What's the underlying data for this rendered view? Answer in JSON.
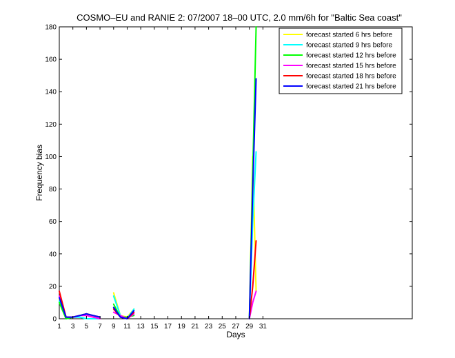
{
  "chart_data": {
    "type": "line",
    "title": "COSMO–EU and RANIE 2: 07/2007 18–00 UTC, 2.0 mm/6h for \"Baltic Sea coast\"",
    "xlabel": "Days",
    "ylabel": "Frequency bias",
    "xlim": [
      1,
      53
    ],
    "ylim": [
      0,
      180
    ],
    "xticks": [
      1,
      3,
      5,
      7,
      9,
      11,
      13,
      15,
      17,
      19,
      21,
      23,
      25,
      27,
      29,
      31
    ],
    "yticks": [
      0,
      20,
      40,
      60,
      80,
      100,
      120,
      140,
      160,
      180
    ],
    "grid": false,
    "legend_position": "top-right",
    "series": [
      {
        "name": "forecast started 6 hrs before",
        "color": "#ffff00",
        "segments": [
          [
            [
              1,
              12
            ],
            [
              2,
              1
            ],
            [
              3,
              1
            ],
            [
              4,
              2
            ],
            [
              5,
              3
            ],
            [
              6,
              1
            ],
            [
              7,
              0
            ]
          ],
          [
            [
              9,
              16
            ],
            [
              10,
              2
            ],
            [
              11,
              1
            ],
            [
              12,
              6
            ]
          ],
          [
            [
              29,
              0
            ],
            [
              29.5,
              100
            ],
            [
              30,
              17
            ]
          ]
        ]
      },
      {
        "name": "forecast started 9 hrs before",
        "color": "#00ffff",
        "segments": [
          [
            [
              1,
              11
            ],
            [
              2,
              0
            ],
            [
              3,
              1
            ],
            [
              4,
              1
            ],
            [
              5,
              0
            ],
            [
              6,
              0
            ],
            [
              7,
              0
            ]
          ],
          [
            [
              9,
              14
            ],
            [
              10,
              2
            ],
            [
              11,
              0
            ],
            [
              12,
              6
            ]
          ],
          [
            [
              29,
              0
            ],
            [
              29.5,
              60
            ],
            [
              30,
              103
            ]
          ]
        ]
      },
      {
        "name": "forecast started 12 hrs before",
        "color": "#00ff00",
        "segments": [
          [
            [
              1,
              10
            ],
            [
              2,
              0
            ],
            [
              3,
              1
            ],
            [
              4,
              2
            ],
            [
              5,
              3
            ],
            [
              6,
              2
            ],
            [
              7,
              1
            ]
          ],
          [
            [
              9,
              9
            ],
            [
              10,
              1
            ],
            [
              11,
              1
            ],
            [
              12,
              2
            ]
          ],
          [
            [
              29,
              0
            ],
            [
              30,
              180
            ]
          ]
        ]
      },
      {
        "name": "forecast started 15 hrs before",
        "color": "#ff00ff",
        "segments": [
          [
            [
              1,
              14
            ],
            [
              2,
              1
            ],
            [
              3,
              1
            ],
            [
              4,
              2
            ],
            [
              5,
              2
            ],
            [
              6,
              1
            ],
            [
              7,
              0
            ]
          ],
          [
            [
              9,
              4
            ],
            [
              10,
              2
            ],
            [
              11,
              0
            ],
            [
              12,
              3
            ]
          ],
          [
            [
              29,
              0
            ],
            [
              29.5,
              10
            ],
            [
              30,
              17
            ]
          ]
        ]
      },
      {
        "name": "forecast started 18 hrs before",
        "color": "#ff0000",
        "segments": [
          [
            [
              1,
              17
            ],
            [
              2,
              1
            ],
            [
              3,
              1
            ],
            [
              4,
              2
            ],
            [
              5,
              3
            ],
            [
              6,
              2
            ],
            [
              7,
              1
            ]
          ],
          [
            [
              9,
              6
            ],
            [
              10,
              1
            ],
            [
              11,
              0
            ],
            [
              12,
              4
            ]
          ],
          [
            [
              29,
              0
            ],
            [
              29.5,
              20
            ],
            [
              30,
              48
            ]
          ]
        ]
      },
      {
        "name": "forecast started 21 hrs before",
        "color": "#0000ff",
        "segments": [
          [
            [
              1,
              13
            ],
            [
              2,
              1
            ],
            [
              3,
              1
            ],
            [
              4,
              2
            ],
            [
              5,
              3
            ],
            [
              6,
              2
            ],
            [
              7,
              1
            ]
          ],
          [
            [
              9,
              7
            ],
            [
              10,
              1
            ],
            [
              11,
              0
            ],
            [
              12,
              5
            ]
          ],
          [
            [
              29,
              0
            ],
            [
              29.5,
              80
            ],
            [
              30,
              148
            ]
          ]
        ]
      }
    ]
  }
}
